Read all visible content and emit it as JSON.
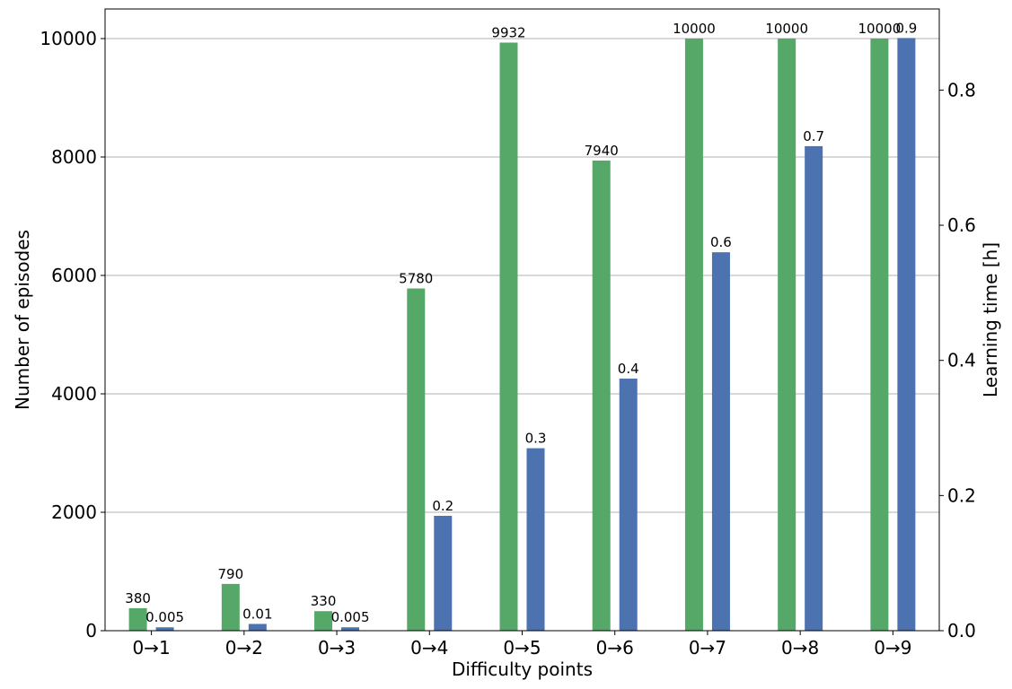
{
  "chart_data": {
    "type": "bar",
    "title": "",
    "xlabel": "Difficulty points",
    "ylabel_left": "Number of episodes",
    "ylabel_right": "Learning time [h]",
    "categories": [
      "0→1",
      "0→2",
      "0→3",
      "0→4",
      "0→5",
      "0→6",
      "0→7",
      "0→8",
      "0→9"
    ],
    "ylim_left": [
      0,
      10500
    ],
    "yticks_left": [
      0,
      2000,
      4000,
      6000,
      8000,
      10000
    ],
    "ylim_right": [
      0,
      0.92
    ],
    "yticks_right": [
      0.0,
      0.2,
      0.4,
      0.6,
      0.8
    ],
    "grid": "horizontal",
    "series": [
      {
        "axis": "left",
        "color": "#55a868",
        "values": [
          380,
          790,
          330,
          5780,
          9932,
          7940,
          10000,
          10000,
          10000
        ],
        "labels": [
          "380",
          "790",
          "330",
          "5780",
          "9932",
          "7940",
          "10000",
          "10000",
          "10000"
        ]
      },
      {
        "axis": "right",
        "color": "#4c72b0",
        "values": [
          0.005,
          0.01,
          0.005,
          0.17,
          0.27,
          0.373,
          0.56,
          0.717,
          0.877
        ],
        "labels": [
          "0.005",
          "0.01",
          "0.005",
          "0.2",
          "0.3",
          "0.4",
          "0.6",
          "0.7",
          "0.9"
        ]
      }
    ]
  }
}
